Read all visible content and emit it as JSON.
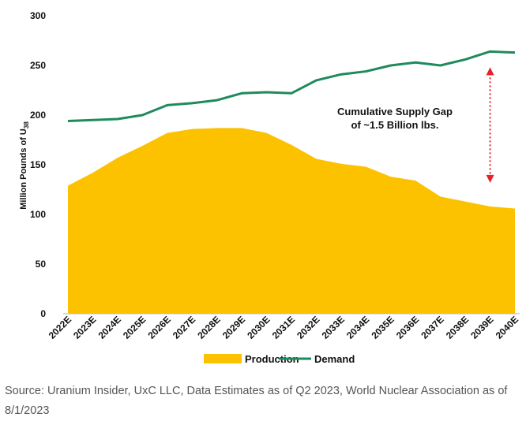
{
  "chart_data": {
    "type": "area",
    "ylabel_text": "Million Pounds of U",
    "ylabel_sub": "3",
    "ylabel_sub2": "8",
    "ylim": [
      0,
      300
    ],
    "yticks": [
      "0",
      "50",
      "100",
      "150",
      "200",
      "250",
      "300"
    ],
    "categories": [
      "2022E",
      "2023E",
      "2024E",
      "2025E",
      "2026E",
      "2027E",
      "2028E",
      "2029E",
      "2030E",
      "2031E",
      "2032E",
      "2033E",
      "2034E",
      "2035E",
      "2036E",
      "2037E",
      "2038E",
      "2039E",
      "2040E"
    ],
    "series": [
      {
        "name": "Production",
        "kind": "area",
        "color": "#fcc200",
        "values": [
          129,
          142,
          157,
          169,
          182,
          186,
          187,
          187,
          182,
          170,
          156,
          151,
          148,
          138,
          134,
          118,
          113,
          108,
          106
        ]
      },
      {
        "name": "Demand",
        "kind": "line",
        "color": "#1f8a5c",
        "values": [
          194,
          195,
          196,
          200,
          210,
          212,
          215,
          222,
          223,
          222,
          235,
          241,
          244,
          250,
          253,
          250,
          256,
          264,
          263
        ]
      }
    ],
    "annotation": {
      "line1": "Cumulative Supply Gap",
      "line2": "of ~1.5 Billion lbs.",
      "arrow_color": "#e8202a"
    },
    "legend_position": "bottom",
    "grid": false
  },
  "source_text": "Source: Uranium Insider, UxC LLC, Data Estimates as of Q2 2023, World Nuclear Association as of 8/1/2023"
}
